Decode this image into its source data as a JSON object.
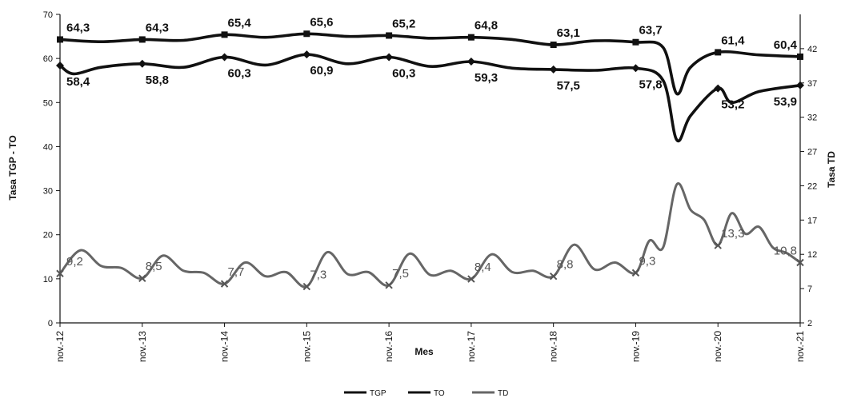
{
  "chart_data": {
    "type": "line",
    "xlabel": "Mes",
    "ylabel_left": "Tasa TGP - TO",
    "ylabel_right": "Tasa TD",
    "y_left_lim": [
      0,
      70
    ],
    "y_left_ticks": [
      0,
      10,
      20,
      30,
      40,
      50,
      60,
      70
    ],
    "y_right_lim": [
      2,
      47
    ],
    "y_right_ticks": [
      2,
      7,
      12,
      17,
      22,
      27,
      32,
      37,
      42
    ],
    "x_ticks": [
      "nov.-12",
      "nov.-13",
      "nov.-14",
      "nov.-15",
      "nov.-16",
      "nov.-17",
      "nov.-18",
      "nov.-19",
      "nov.-20",
      "nov.-21"
    ],
    "legend": [
      "TGP",
      "TO",
      "TD"
    ],
    "grid": false,
    "legend_position": "bottom",
    "series": [
      {
        "name": "TGP",
        "axis": "left",
        "color": "#111111",
        "months": [
          0,
          6,
          12,
          18,
          24,
          30,
          36,
          42,
          48,
          54,
          60,
          66,
          72,
          78,
          84,
          88,
          90,
          92,
          96,
          102,
          108
        ],
        "values": [
          64.3,
          63.8,
          64.3,
          64.1,
          65.4,
          64.8,
          65.6,
          65.0,
          65.2,
          64.6,
          64.8,
          64.3,
          63.1,
          64.0,
          63.7,
          62.5,
          52.0,
          58.0,
          61.4,
          60.8,
          60.4
        ],
        "labels": [
          {
            "month": 0,
            "text": "64,3"
          },
          {
            "month": 12,
            "text": "64,3"
          },
          {
            "month": 24,
            "text": "65,4"
          },
          {
            "month": 36,
            "text": "65,6"
          },
          {
            "month": 48,
            "text": "65,2"
          },
          {
            "month": 60,
            "text": "64,8"
          },
          {
            "month": 72,
            "text": "63,1"
          },
          {
            "month": 84,
            "text": "63,7"
          },
          {
            "month": 96,
            "text": "61,4"
          },
          {
            "month": 108,
            "text": "60,4"
          }
        ]
      },
      {
        "name": "TO",
        "axis": "left",
        "color": "#111111",
        "months": [
          0,
          2,
          6,
          12,
          18,
          24,
          30,
          36,
          42,
          48,
          54,
          60,
          66,
          72,
          78,
          84,
          88,
          90,
          92,
          96,
          98,
          102,
          108
        ],
        "values": [
          58.4,
          56.5,
          58.0,
          58.8,
          58.0,
          60.3,
          58.5,
          60.9,
          58.8,
          60.3,
          58.2,
          59.3,
          57.8,
          57.5,
          57.3,
          57.8,
          55.0,
          41.5,
          47.0,
          53.2,
          50.0,
          52.5,
          53.9
        ],
        "labels": [
          {
            "month": 0,
            "text": "58,4"
          },
          {
            "month": 12,
            "text": "58,8"
          },
          {
            "month": 24,
            "text": "60,3"
          },
          {
            "month": 36,
            "text": "60,9"
          },
          {
            "month": 48,
            "text": "60,3"
          },
          {
            "month": 60,
            "text": "59,3"
          },
          {
            "month": 72,
            "text": "57,5"
          },
          {
            "month": 84,
            "text": "57,8"
          },
          {
            "month": 96,
            "text": "53,2"
          },
          {
            "month": 108,
            "text": "53,9"
          }
        ]
      },
      {
        "name": "TD",
        "axis": "right",
        "color": "#666666",
        "months": [
          0,
          3,
          6,
          9,
          12,
          15,
          18,
          21,
          24,
          27,
          30,
          33,
          36,
          39,
          42,
          45,
          48,
          51,
          54,
          57,
          60,
          63,
          66,
          69,
          72,
          75,
          78,
          81,
          84,
          86,
          88,
          90,
          92,
          94,
          96,
          98,
          100,
          102,
          104,
          106,
          108
        ],
        "values": [
          9.2,
          12.6,
          10.3,
          10.0,
          8.5,
          11.8,
          9.6,
          9.3,
          7.7,
          10.8,
          8.8,
          9.4,
          7.3,
          12.3,
          9.1,
          9.4,
          7.5,
          12.1,
          9.0,
          9.6,
          8.4,
          12.0,
          9.4,
          9.6,
          8.8,
          13.4,
          9.8,
          10.8,
          9.3,
          14.0,
          13.0,
          22.2,
          18.5,
          17.0,
          13.3,
          18.0,
          15.0,
          16.0,
          13.0,
          12.2,
          10.8
        ],
        "labels": [
          {
            "month": 0,
            "text": "9,2"
          },
          {
            "month": 12,
            "text": "8,5"
          },
          {
            "month": 24,
            "text": "7,7"
          },
          {
            "month": 36,
            "text": "7,3"
          },
          {
            "month": 48,
            "text": "7,5"
          },
          {
            "month": 60,
            "text": "8,4"
          },
          {
            "month": 72,
            "text": "8,8"
          },
          {
            "month": 84,
            "text": "9,3"
          },
          {
            "month": 96,
            "text": "13,3"
          },
          {
            "month": 108,
            "text": "10,8"
          }
        ]
      }
    ]
  }
}
